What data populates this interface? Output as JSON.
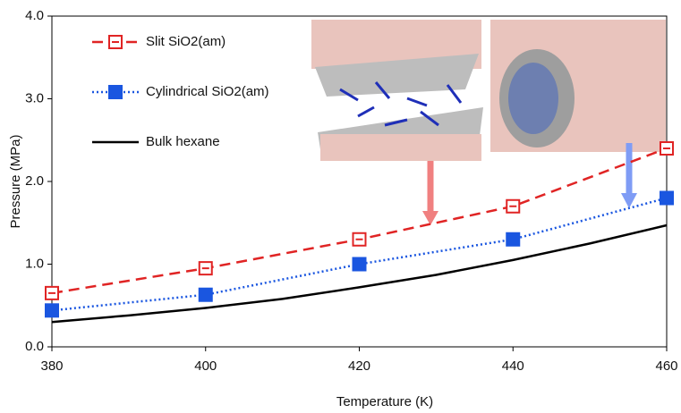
{
  "chart_data": {
    "type": "line",
    "xlabel": "Temperature (K)",
    "ylabel": "Pressure (MPa)",
    "xlim": [
      380,
      460
    ],
    "xticks": [
      380,
      400,
      420,
      440,
      460
    ],
    "ylim": [
      0,
      4
    ],
    "yticks": [
      {
        "value": 0,
        "label": "0.0"
      },
      {
        "value": 1,
        "label": "1.0"
      },
      {
        "value": 2,
        "label": "2.0"
      },
      {
        "value": 3,
        "label": "3.0"
      },
      {
        "value": 4,
        "label": "4.0"
      }
    ],
    "legend": "upper left",
    "series": [
      {
        "name": "Slit SiO2(am)",
        "color": "#e02424",
        "dash": "dashed",
        "marker": "open-square",
        "x": [
          380,
          400,
          420,
          440,
          460
        ],
        "values": [
          0.65,
          0.95,
          1.3,
          1.7,
          2.4
        ]
      },
      {
        "name": "Cylindrical SiO2(am)",
        "color": "#1a56e0",
        "dash": "dotted",
        "marker": "filled-square",
        "x": [
          380,
          400,
          420,
          440,
          460
        ],
        "values": [
          0.44,
          0.63,
          1.0,
          1.3,
          1.8
        ]
      },
      {
        "name": "Bulk hexane",
        "color": "#000000",
        "dash": "solid",
        "marker": "none",
        "x": [
          380,
          390,
          400,
          410,
          420,
          430,
          440,
          450,
          460
        ],
        "values": [
          0.3,
          0.38,
          0.47,
          0.58,
          0.72,
          0.87,
          1.05,
          1.25,
          1.47
        ]
      }
    ]
  }
}
